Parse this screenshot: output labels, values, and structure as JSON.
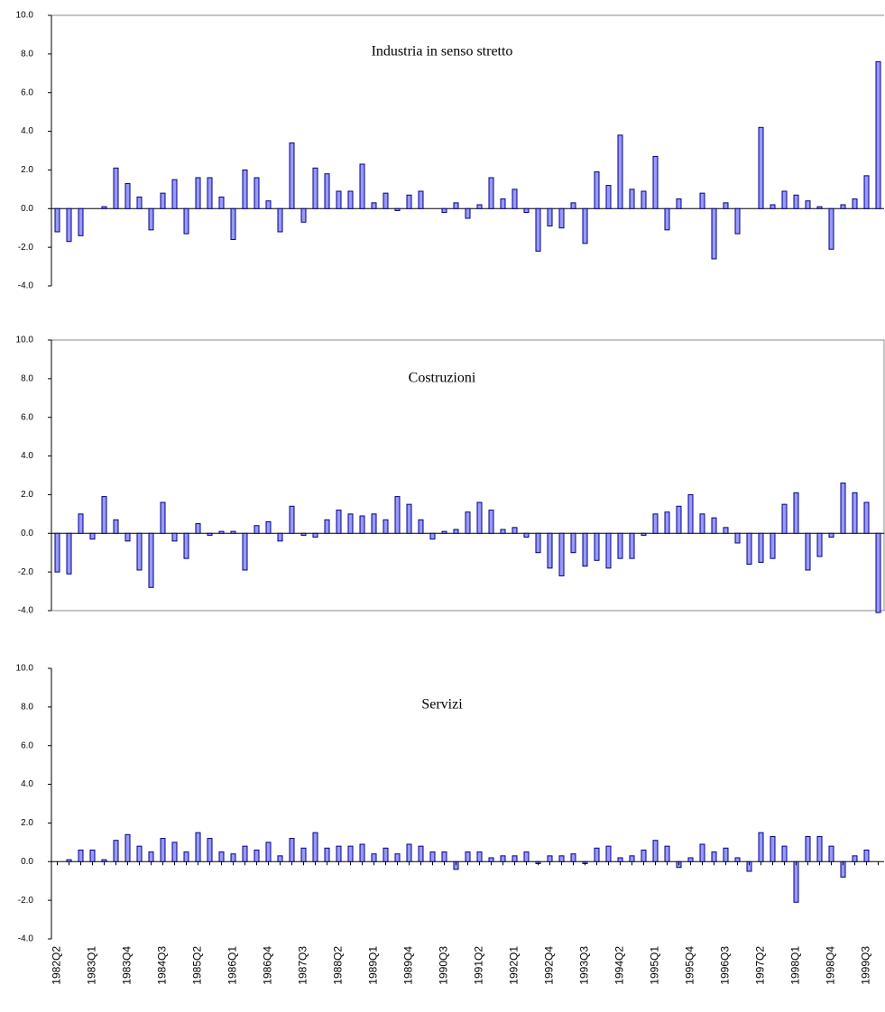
{
  "chart_data": [
    {
      "type": "bar",
      "title": "Industria in senso stretto",
      "color": "#9999ff",
      "edge_color": "#000080",
      "values": [
        -1.2,
        -1.7,
        -1.4,
        0,
        0.1,
        2.1,
        1.3,
        0.6,
        -1.1,
        0.8,
        1.5,
        -1.3,
        1.6,
        1.6,
        0.6,
        -1.6,
        2.0,
        1.6,
        0.4,
        -1.2,
        3.4,
        -0.7,
        2.1,
        1.8,
        0.9,
        0.9,
        2.3,
        0.3,
        0.8,
        -0.1,
        0.7,
        0.9,
        0,
        -0.2,
        0.3,
        -0.5,
        0.2,
        1.6,
        0.5,
        1.0,
        -0.2,
        -2.2,
        -0.9,
        -1.0,
        0.3,
        -1.8,
        1.9,
        1.2,
        3.8,
        1.0,
        0.9,
        2.7,
        -1.1,
        0.5,
        0,
        0.8,
        -2.6,
        0.3,
        -1.3,
        0,
        4.2,
        0.2,
        0.9,
        0.7,
        0.4,
        0.1,
        -2.1,
        0.2,
        0.5,
        1.7,
        7.6
      ],
      "ylim": [
        -4,
        10
      ],
      "yticks": [
        {
          "value": -4,
          "label": "-4.0"
        },
        {
          "value": -2,
          "label": "-2.0"
        },
        {
          "value": 0,
          "label": "0.0"
        },
        {
          "value": 2,
          "label": "2.0"
        },
        {
          "value": 4,
          "label": "4.0"
        },
        {
          "value": 6,
          "label": "6.0"
        },
        {
          "value": 8,
          "label": "8.0"
        },
        {
          "value": 10,
          "label": "10.0"
        }
      ]
    },
    {
      "type": "bar",
      "title": "Costruzioni",
      "color": "#9999ff",
      "edge_color": "#000080",
      "values": [
        -2.0,
        -2.1,
        1.0,
        -0.3,
        1.9,
        0.7,
        -0.4,
        -1.9,
        -2.8,
        1.6,
        -0.4,
        -1.3,
        0.5,
        -0.1,
        0.1,
        0.1,
        -1.9,
        0.4,
        0.6,
        -0.4,
        1.4,
        -0.1,
        -0.2,
        0.7,
        1.2,
        1.0,
        0.9,
        1.0,
        0.7,
        1.9,
        1.5,
        0.7,
        -0.3,
        0.1,
        0.2,
        1.1,
        1.6,
        1.2,
        0.2,
        0.3,
        -0.2,
        -1.0,
        -1.8,
        -2.2,
        -1.0,
        -1.7,
        -1.4,
        -1.8,
        -1.3,
        -1.3,
        -0.1,
        1.0,
        1.1,
        1.4,
        2.0,
        1.0,
        0.8,
        0.3,
        -0.5,
        -1.6,
        -1.5,
        -1.3,
        1.5,
        2.1,
        -1.9,
        -1.2,
        -0.2,
        2.6,
        2.1,
        1.6,
        -4.1
      ],
      "ylim": [
        -4,
        10
      ],
      "yticks": [
        {
          "value": -4,
          "label": "-4.0"
        },
        {
          "value": -2,
          "label": "-2.0"
        },
        {
          "value": 0,
          "label": "0.0"
        },
        {
          "value": 2,
          "label": "2.0"
        },
        {
          "value": 4,
          "label": "4.0"
        },
        {
          "value": 6,
          "label": "6.0"
        },
        {
          "value": 8,
          "label": "8.0"
        },
        {
          "value": 10,
          "label": "10.0"
        }
      ]
    },
    {
      "type": "bar",
      "title": "Servizi",
      "color": "#9999ff",
      "edge_color": "#000080",
      "categories": [
        "1982Q2",
        null,
        null,
        "1983Q1",
        null,
        null,
        "1983Q4",
        null,
        null,
        "1984Q3",
        null,
        null,
        "1985Q2",
        null,
        null,
        "1986Q1",
        null,
        null,
        "1986Q4",
        null,
        null,
        "1987Q3",
        null,
        null,
        "1988Q2",
        null,
        null,
        "1989Q1",
        null,
        null,
        "1989Q4",
        null,
        null,
        "1990Q3",
        null,
        null,
        "1991Q2",
        null,
        null,
        "1992Q1",
        null,
        null,
        "1992Q4",
        null,
        null,
        "1993Q3",
        null,
        null,
        "1994Q2",
        null,
        null,
        "1995Q1",
        null,
        null,
        "1995Q4",
        null,
        null,
        "1996Q3",
        null,
        null,
        "1997Q2",
        null,
        null,
        "1998Q1",
        null,
        null,
        "1998Q4",
        null,
        null,
        "1999Q3",
        null
      ],
      "values": [
        0,
        0.1,
        0.6,
        0.6,
        0.1,
        1.1,
        1.4,
        0.8,
        0.5,
        1.2,
        1.0,
        0.5,
        1.5,
        1.2,
        0.5,
        0.4,
        0.8,
        0.6,
        1.0,
        0.3,
        1.2,
        0.7,
        1.5,
        0.7,
        0.8,
        0.8,
        0.9,
        0.4,
        0.7,
        0.4,
        0.9,
        0.8,
        0.5,
        0.5,
        -0.4,
        0.5,
        0.5,
        0.2,
        0.3,
        0.3,
        0.5,
        -0.1,
        0.3,
        0.3,
        0.4,
        -0.1,
        0.7,
        0.8,
        0.2,
        0.3,
        0.6,
        1.1,
        0.8,
        -0.3,
        0.2,
        0.9,
        0.5,
        0.7,
        0.2,
        -0.5,
        1.5,
        1.3,
        0.8,
        -2.1,
        1.3,
        1.3,
        0.8,
        -0.8,
        0.3,
        0.6,
        0
      ],
      "ylim": [
        -4,
        10
      ],
      "yticks": [
        {
          "value": -4,
          "label": "-4.0"
        },
        {
          "value": -2,
          "label": "-2.0"
        },
        {
          "value": 0,
          "label": "0.0"
        },
        {
          "value": 2,
          "label": "2.0"
        },
        {
          "value": 4,
          "label": "4.0"
        },
        {
          "value": 6,
          "label": "6.0"
        },
        {
          "value": 8,
          "label": "8.0"
        },
        {
          "value": 10,
          "label": "10.0"
        }
      ]
    }
  ]
}
